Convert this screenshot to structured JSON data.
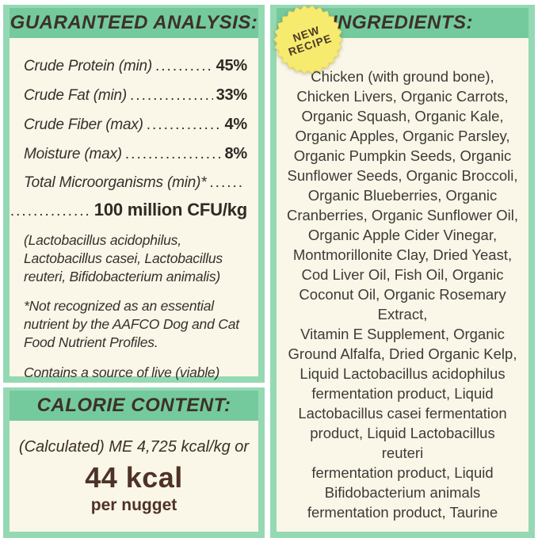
{
  "colors": {
    "frame_green": "#95d9b3",
    "header_green": "#74ca9c",
    "cream": "#faf6e8",
    "title_brown": "#3d3029",
    "body_brown": "#35302b",
    "kcal_brown": "#4f3227",
    "badge_yellow": "#f6eb6f",
    "badge_text_brown": "#4a3a26"
  },
  "analysis": {
    "title": "GUARANTEED ANALYSIS:",
    "rows": [
      {
        "label": "Crude Protein (min)",
        "dots": "................................",
        "value": "45%"
      },
      {
        "label": "Crude Fat (min)",
        "dots": "................................",
        "value": "33%"
      },
      {
        "label": "Crude Fiber (max)",
        "dots": "................................",
        "value": "4%"
      },
      {
        "label": "Moisture (max)",
        "dots": "................................",
        "value": "8%"
      },
      {
        "label": "Total Microorganisms (min)*",
        "dots": "..........",
        "value": ""
      },
      {
        "label": "",
        "dots": "..............",
        "value": "100 million CFU/kg"
      }
    ],
    "notes": [
      "(Lactobacillus acidophilus, Lactobacillus casei, Lactobacillus reuteri, Bifidobacterium animalis)",
      "*Not recognized as an essential nutrient by the AAFCO Dog and Cat Food Nutrient Profiles.",
      "Contains a source of live (viable) naturally occurring microorganisms"
    ]
  },
  "calorie": {
    "title": "CALORIE CONTENT:",
    "line1": "(Calculated) ME 4,725 kcal/kg or",
    "kcal": "44 kcal",
    "per": "per nugget"
  },
  "ingredients": {
    "title": "INGREDIENTS:",
    "badge_line1": "NEW",
    "badge_line2": "RECIPE",
    "lines": [
      "Chicken (with ground bone),",
      "Chicken Livers, Organic Carrots,",
      "Organic Squash, Organic Kale,",
      "Organic Apples, Organic Parsley,",
      "Organic Pumpkin Seeds, Organic",
      "Sunflower Seeds, Organic Broccoli,",
      "Organic Blueberries, Organic",
      "Cranberries, Organic Sunflower Oil,",
      "Organic Apple Cider Vinegar,",
      "Montmorillonite Clay, Dried Yeast,",
      "Cod Liver Oil, Fish Oil, Organic",
      "Coconut Oil, Organic Rosemary",
      "Extract,",
      "Vitamin E Supplement, Organic",
      "Ground Alfalfa, Dried Organic Kelp,",
      "Liquid Lactobacillus acidophilus",
      "fermentation product, Liquid",
      "Lactobacillus casei fermentation",
      "product, Liquid Lactobacillus",
      "reuteri",
      "fermentation product, Liquid",
      "Bifidobacterium animals",
      "fermentation product, Taurine"
    ]
  }
}
